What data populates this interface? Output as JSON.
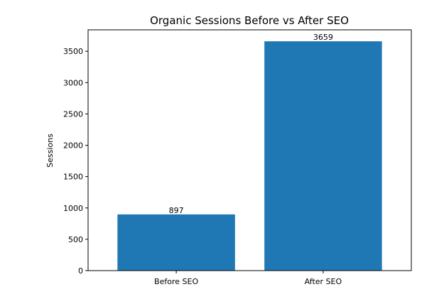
{
  "chart_data": {
    "type": "bar",
    "title": "Organic Sessions Before vs After SEO",
    "xlabel": "",
    "ylabel": "Sessions",
    "categories": [
      "Before SEO",
      "After SEO"
    ],
    "values": [
      897,
      3659
    ],
    "data_labels": [
      "897",
      "3659"
    ],
    "ylim": [
      0,
      3842
    ],
    "yticks": [
      0,
      500,
      1000,
      1500,
      2000,
      2500,
      3000,
      3500
    ],
    "bar_color": "#1f77b4",
    "grid": false,
    "legend": "none"
  }
}
